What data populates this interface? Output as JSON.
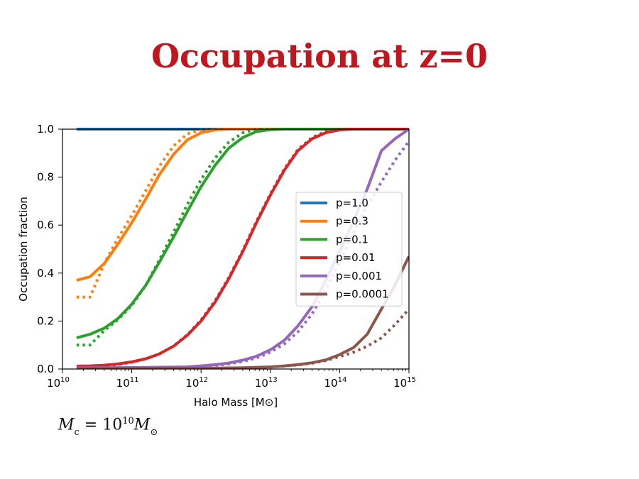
{
  "slide": {
    "title": "Occupation at z=0",
    "formula": {
      "lhs": "M",
      "lhs_sub": "c",
      "eq": " = 10",
      "exp": "10",
      "rhs": "M",
      "rhs_sub": "⊙"
    }
  },
  "chart_data": {
    "type": "line",
    "xlabel": "Halo Mass [M⊙]",
    "ylabel": "Occupation fraction",
    "xscale": "log",
    "xlim": [
      10000000000.0,
      1000000000000000.0
    ],
    "ylim": [
      0,
      1
    ],
    "xticks": [
      {
        "value": 10000000000.0,
        "base": "10",
        "exp": "10"
      },
      {
        "value": 100000000000.0,
        "base": "10",
        "exp": "11"
      },
      {
        "value": 1000000000000.0,
        "base": "10",
        "exp": "12"
      },
      {
        "value": 10000000000000.0,
        "base": "10",
        "exp": "13"
      },
      {
        "value": 100000000000000.0,
        "base": "10",
        "exp": "14"
      },
      {
        "value": 1000000000000000.0,
        "base": "10",
        "exp": "15"
      }
    ],
    "yticks": [
      "0.0",
      "0.2",
      "0.4",
      "0.6",
      "0.8",
      "1.0"
    ],
    "legend_position": "center-right",
    "grid": false,
    "series": [
      {
        "name": "p=1.0",
        "color": "#1f77b4",
        "solid": [
          [
            16000000000.0,
            1
          ],
          [
            1000000000000000.0,
            1
          ]
        ],
        "dotted": [
          [
            16000000000.0,
            1
          ],
          [
            1000000000000000.0,
            1
          ]
        ]
      },
      {
        "name": "p=0.3",
        "color": "#ff7f0e",
        "solid": [
          [
            16000000000.0,
            0.37
          ],
          [
            25000000000.0,
            0.385
          ],
          [
            40000000000.0,
            0.44
          ],
          [
            63000000000.0,
            0.52
          ],
          [
            100000000000.0,
            0.61
          ],
          [
            160000000000.0,
            0.71
          ],
          [
            250000000000.0,
            0.81
          ],
          [
            400000000000.0,
            0.895
          ],
          [
            630000000000.0,
            0.955
          ],
          [
            1000000000000.0,
            0.985
          ],
          [
            1600000000000.0,
            0.997
          ],
          [
            2500000000000.0,
            1
          ],
          [
            1000000000000000.0,
            1
          ]
        ],
        "dotted": [
          [
            16000000000.0,
            0.3
          ],
          [
            25000000000.0,
            0.3
          ],
          [
            40000000000.0,
            0.44
          ],
          [
            63000000000.0,
            0.545
          ],
          [
            100000000000.0,
            0.64
          ],
          [
            160000000000.0,
            0.745
          ],
          [
            250000000000.0,
            0.845
          ],
          [
            400000000000.0,
            0.93
          ],
          [
            630000000000.0,
            0.98
          ],
          [
            1000000000000.0,
            0.997
          ],
          [
            1600000000000.0,
            1
          ],
          [
            1000000000000000.0,
            1
          ]
        ]
      },
      {
        "name": "p=0.1",
        "color": "#2ca02c",
        "solid": [
          [
            16000000000.0,
            0.13
          ],
          [
            25000000000.0,
            0.145
          ],
          [
            40000000000.0,
            0.17
          ],
          [
            63000000000.0,
            0.21
          ],
          [
            100000000000.0,
            0.27
          ],
          [
            160000000000.0,
            0.35
          ],
          [
            250000000000.0,
            0.445
          ],
          [
            400000000000.0,
            0.55
          ],
          [
            630000000000.0,
            0.655
          ],
          [
            1000000000000.0,
            0.76
          ],
          [
            1600000000000.0,
            0.85
          ],
          [
            2500000000000.0,
            0.92
          ],
          [
            4000000000000.0,
            0.965
          ],
          [
            6300000000000.0,
            0.99
          ],
          [
            10000000000000.0,
            0.998
          ],
          [
            16000000000000.0,
            1
          ],
          [
            1000000000000000.0,
            1
          ]
        ],
        "dotted": [
          [
            16000000000.0,
            0.1
          ],
          [
            25000000000.0,
            0.1
          ],
          [
            40000000000.0,
            0.16
          ],
          [
            63000000000.0,
            0.205
          ],
          [
            100000000000.0,
            0.265
          ],
          [
            160000000000.0,
            0.35
          ],
          [
            250000000000.0,
            0.455
          ],
          [
            400000000000.0,
            0.57
          ],
          [
            630000000000.0,
            0.685
          ],
          [
            1000000000000.0,
            0.79
          ],
          [
            1600000000000.0,
            0.88
          ],
          [
            2500000000000.0,
            0.945
          ],
          [
            4000000000000.0,
            0.985
          ],
          [
            6300000000000.0,
            1
          ],
          [
            1000000000000000.0,
            1
          ]
        ]
      },
      {
        "name": "p=0.01",
        "color": "#d62728",
        "solid": [
          [
            16000000000.0,
            0.012
          ],
          [
            25000000000.0,
            0.013
          ],
          [
            40000000000.0,
            0.016
          ],
          [
            63000000000.0,
            0.021
          ],
          [
            100000000000.0,
            0.03
          ],
          [
            160000000000.0,
            0.043
          ],
          [
            250000000000.0,
            0.063
          ],
          [
            400000000000.0,
            0.095
          ],
          [
            630000000000.0,
            0.14
          ],
          [
            1000000000000.0,
            0.2
          ],
          [
            1600000000000.0,
            0.28
          ],
          [
            2500000000000.0,
            0.375
          ],
          [
            4000000000000.0,
            0.49
          ],
          [
            6300000000000.0,
            0.61
          ],
          [
            10000000000000.0,
            0.725
          ],
          [
            16000000000000.0,
            0.83
          ],
          [
            25000000000000.0,
            0.91
          ],
          [
            40000000000000.0,
            0.96
          ],
          [
            63000000000000.0,
            0.985
          ],
          [
            100000000000000.0,
            0.997
          ],
          [
            160000000000000.0,
            1
          ],
          [
            1000000000000000.0,
            1
          ]
        ],
        "dotted": [
          [
            16000000000.0,
            0.008
          ],
          [
            25000000000.0,
            0.01
          ],
          [
            40000000000.0,
            0.013
          ],
          [
            63000000000.0,
            0.019
          ],
          [
            100000000000.0,
            0.028
          ],
          [
            160000000000.0,
            0.042
          ],
          [
            250000000000.0,
            0.063
          ],
          [
            400000000000.0,
            0.096
          ],
          [
            630000000000.0,
            0.142
          ],
          [
            1000000000000.0,
            0.204
          ],
          [
            1600000000000.0,
            0.285
          ],
          [
            2500000000000.0,
            0.38
          ],
          [
            4000000000000.0,
            0.495
          ],
          [
            6300000000000.0,
            0.615
          ],
          [
            10000000000000.0,
            0.73
          ],
          [
            16000000000000.0,
            0.835
          ],
          [
            25000000000000.0,
            0.915
          ],
          [
            40000000000000.0,
            0.965
          ],
          [
            63000000000000.0,
            0.99
          ],
          [
            100000000000000.0,
            1
          ],
          [
            1000000000000000.0,
            1
          ]
        ]
      },
      {
        "name": "p=0.001",
        "color": "#9467bd",
        "solid": [
          [
            16000000000.0,
            0.005
          ],
          [
            100000000000.0,
            0.006
          ],
          [
            630000000000.0,
            0.009
          ],
          [
            1000000000000.0,
            0.013
          ],
          [
            1600000000000.0,
            0.018
          ],
          [
            2500000000000.0,
            0.025
          ],
          [
            4000000000000.0,
            0.037
          ],
          [
            6300000000000.0,
            0.053
          ],
          [
            10000000000000.0,
            0.08
          ],
          [
            16000000000000.0,
            0.12
          ],
          [
            25000000000000.0,
            0.18
          ],
          [
            40000000000000.0,
            0.26
          ],
          [
            63000000000000.0,
            0.37
          ],
          [
            100000000000000.0,
            0.49
          ],
          [
            160000000000000.0,
            0.62
          ],
          [
            250000000000000.0,
            0.75
          ],
          [
            400000000000000.0,
            0.91
          ],
          [
            630000000000000.0,
            0.96
          ],
          [
            1000000000000000.0,
            1
          ]
        ],
        "dotted": [
          [
            16000000000.0,
            0.003
          ],
          [
            100000000000.0,
            0.004
          ],
          [
            630000000000.0,
            0.007
          ],
          [
            1000000000000.0,
            0.011
          ],
          [
            1600000000000.0,
            0.015
          ],
          [
            2500000000000.0,
            0.021
          ],
          [
            4000000000000.0,
            0.031
          ],
          [
            6300000000000.0,
            0.046
          ],
          [
            10000000000000.0,
            0.07
          ],
          [
            16000000000000.0,
            0.105
          ],
          [
            25000000000000.0,
            0.155
          ],
          [
            40000000000000.0,
            0.23
          ],
          [
            63000000000000.0,
            0.33
          ],
          [
            100000000000000.0,
            0.445
          ],
          [
            160000000000000.0,
            0.57
          ],
          [
            250000000000000.0,
            0.68
          ],
          [
            400000000000000.0,
            0.78
          ],
          [
            630000000000000.0,
            0.87
          ],
          [
            1000000000000000.0,
            0.95
          ]
        ]
      },
      {
        "name": "p=0.0001",
        "color": "#8c564b",
        "solid": [
          [
            16000000000.0,
            0.002
          ],
          [
            1000000000000.0,
            0.003
          ],
          [
            4000000000000.0,
            0.005
          ],
          [
            10000000000000.0,
            0.009
          ],
          [
            16000000000000.0,
            0.013
          ],
          [
            25000000000000.0,
            0.018
          ],
          [
            40000000000000.0,
            0.026
          ],
          [
            63000000000000.0,
            0.038
          ],
          [
            100000000000000.0,
            0.06
          ],
          [
            160000000000000.0,
            0.09
          ],
          [
            250000000000000.0,
            0.145
          ],
          [
            400000000000000.0,
            0.25
          ],
          [
            630000000000000.0,
            0.35
          ],
          [
            1000000000000000.0,
            0.47
          ]
        ],
        "dotted": [
          [
            16000000000.0,
            0.001
          ],
          [
            1000000000000.0,
            0.002
          ],
          [
            4000000000000.0,
            0.004
          ],
          [
            10000000000000.0,
            0.008
          ],
          [
            16000000000000.0,
            0.012
          ],
          [
            25000000000000.0,
            0.017
          ],
          [
            40000000000000.0,
            0.024
          ],
          [
            63000000000000.0,
            0.035
          ],
          [
            100000000000000.0,
            0.052
          ],
          [
            160000000000000.0,
            0.07
          ],
          [
            250000000000000.0,
            0.095
          ],
          [
            400000000000000.0,
            0.13
          ],
          [
            630000000000000.0,
            0.185
          ],
          [
            1000000000000000.0,
            0.25
          ]
        ]
      }
    ]
  }
}
